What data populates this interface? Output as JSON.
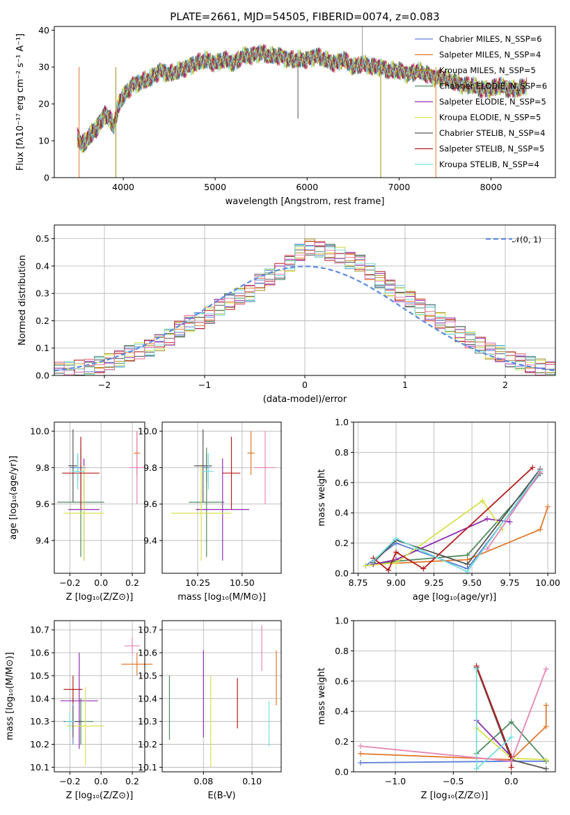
{
  "title": "PLATE=2661, MJD=54505, FIBERID=0074, z=0.083",
  "colors": {
    "Chabrier MILES": "#5b7fd6",
    "Salpeter MILES": "#e0782c",
    "Kroupa MILES": "#a08a20",
    "Chabrier ELODIE": "#4e8a5e",
    "Salpeter ELODIE": "#8e2bb0",
    "Kroupa ELODIE": "#d6e04c",
    "Chabrier STELIB": "#555555",
    "Salpeter STELIB": "#b51c1c",
    "Kroupa STELIB": "#78dede",
    "Pink": "#e684b4",
    "normal": "#5b8ae0"
  },
  "chart_data": [
    {
      "type": "line",
      "xlabel": "wavelength [Angstrom, rest frame]",
      "ylabel": "Flux [fλ10⁻¹⁷ erg cm⁻² s⁻¹ A⁻¹]",
      "xlim": [
        3250,
        8700
      ],
      "ylim": [
        0,
        41
      ],
      "xticks": [
        "4000",
        "5000",
        "6000",
        "7000",
        "8000"
      ],
      "yticks": [
        "0",
        "10",
        "20",
        "30",
        "40"
      ],
      "legend_position": "top-right",
      "legend": [
        "Chabrier MILES, N_SSP=6",
        "Salpeter MILES, N_SSP=4",
        "Kroupa MILES, N_SSP=5",
        "Chabrier ELODIE, N_SSP=6",
        "Salpeter ELODIE, N_SSP=5",
        "Kroupa ELODIE, N_SSP=5",
        "Chabrier STELIB, N_SSP=4",
        "Salpeter STELIB, N_SSP=5",
        "Kroupa STELIB, N_SSP=4"
      ],
      "spectrum_x": [
        3500,
        3550,
        3600,
        3650,
        3700,
        3750,
        3800,
        3850,
        3900,
        3950,
        4000,
        4100,
        4200,
        4300,
        4400,
        4500,
        4600,
        4700,
        4800,
        4900,
        5000,
        5100,
        5200,
        5300,
        5400,
        5500,
        5600,
        5700,
        5800,
        5900,
        6000,
        6100,
        6200,
        6300,
        6400,
        6500,
        6600,
        6700,
        6800,
        6900,
        7000,
        7100,
        7200,
        7300,
        7400,
        7500,
        7600,
        7700,
        7800,
        7900,
        8000,
        8100,
        8200,
        8300,
        8400
      ],
      "spectrum_y": [
        11,
        9,
        10,
        12,
        13,
        15,
        17,
        16,
        14,
        20,
        22,
        25,
        26,
        27,
        29,
        28,
        29,
        30,
        31,
        32,
        31,
        32,
        31,
        33,
        33,
        34,
        33,
        33,
        32,
        32,
        32,
        33,
        32,
        31,
        32,
        30,
        31,
        30,
        30,
        29,
        29,
        28,
        29,
        28,
        27,
        27,
        26,
        25,
        25,
        24,
        24,
        25,
        24,
        24,
        25
      ]
    },
    {
      "type": "bar",
      "xlabel": "(data-model)/error",
      "ylabel": "Normed distribution",
      "xlim": [
        -2.5,
        2.5
      ],
      "ylim": [
        0,
        0.55
      ],
      "xticks": [
        "−2",
        "−1",
        "0",
        "1",
        "2"
      ],
      "yticks": [
        "0.0",
        "0.1",
        "0.2",
        "0.3",
        "0.4",
        "0.5"
      ],
      "legend": [
        "𝒩(0, 1)"
      ],
      "bin_width": 0.1,
      "histogram": [
        0.02,
        0.02,
        0.03,
        0.03,
        0.04,
        0.05,
        0.06,
        0.08,
        0.09,
        0.1,
        0.12,
        0.14,
        0.17,
        0.19,
        0.2,
        0.22,
        0.25,
        0.27,
        0.29,
        0.3,
        0.34,
        0.36,
        0.38,
        0.41,
        0.45,
        0.47,
        0.46,
        0.45,
        0.44,
        0.42,
        0.41,
        0.38,
        0.35,
        0.32,
        0.3,
        0.28,
        0.25,
        0.23,
        0.2,
        0.18,
        0.15,
        0.13,
        0.11,
        0.09,
        0.08,
        0.06,
        0.05,
        0.04,
        0.03,
        0.02
      ]
    },
    {
      "type": "scatter",
      "xlabel": "Z [log₁₀(Z/Z⊙)]",
      "ylabel": "age  [log₁₀(age/yr)]",
      "xlim": [
        -0.3,
        0.28
      ],
      "ylim": [
        9.22,
        10.05
      ],
      "xticks": [
        "−0.2",
        "0.0",
        "0.2"
      ],
      "yticks": [
        "9.4",
        "9.6",
        "9.8",
        "10.0"
      ],
      "points": [
        {
          "series": "Chabrier MILES",
          "x": -0.15,
          "y": 9.8,
          "xerr": 0.05,
          "yerr": 0.08
        },
        {
          "series": "Salpeter MILES",
          "x": 0.23,
          "y": 9.88,
          "xerr": 0.02,
          "yerr": 0.12
        },
        {
          "series": "Chabrier ELODIE",
          "x": -0.13,
          "y": 9.61,
          "xerr": 0.15,
          "yerr": 0.3
        },
        {
          "series": "Salpeter ELODIE",
          "x": -0.11,
          "y": 9.57,
          "xerr": 0.1,
          "yerr": 0.28
        },
        {
          "series": "Kroupa ELODIE",
          "x": -0.11,
          "y": 9.55,
          "xerr": 0.13,
          "yerr": 0.26
        },
        {
          "series": "Chabrier STELIB",
          "x": -0.18,
          "y": 9.81,
          "xerr": 0.03,
          "yerr": 0.2
        },
        {
          "series": "Salpeter STELIB",
          "x": -0.13,
          "y": 9.77,
          "xerr": 0.12,
          "yerr": 0.2
        },
        {
          "series": "Kroupa STELIB",
          "x": -0.15,
          "y": 9.78,
          "xerr": 0.04,
          "yerr": 0.1
        },
        {
          "series": "Pink",
          "x": 0.23,
          "y": 9.8,
          "xerr": 0.05,
          "yerr": 0.2
        }
      ]
    },
    {
      "type": "scatter",
      "xlabel": "mass [log₁₀(M/M⊙)]",
      "ylabel": "",
      "xlim": [
        10.05,
        10.72
      ],
      "ylim": [
        9.22,
        10.05
      ],
      "xticks": [
        "10.25",
        "10.50"
      ],
      "yticks": [
        "9.4",
        "9.6",
        "9.8",
        "10.0"
      ],
      "points": [
        {
          "series": "Chabrier MILES",
          "x": 10.3,
          "y": 9.8,
          "xerr": 0.02,
          "yerr": 0.08
        },
        {
          "series": "Salpeter MILES",
          "x": 10.55,
          "y": 9.88,
          "xerr": 0.02,
          "yerr": 0.12
        },
        {
          "series": "Chabrier ELODIE",
          "x": 10.3,
          "y": 9.61,
          "xerr": 0.1,
          "yerr": 0.3
        },
        {
          "series": "Salpeter ELODIE",
          "x": 10.39,
          "y": 9.57,
          "xerr": 0.15,
          "yerr": 0.28
        },
        {
          "series": "Kroupa ELODIE",
          "x": 10.27,
          "y": 9.55,
          "xerr": 0.17,
          "yerr": 0.26
        },
        {
          "series": "Chabrier STELIB",
          "x": 10.28,
          "y": 9.81,
          "xerr": 0.05,
          "yerr": 0.2
        },
        {
          "series": "Salpeter STELIB",
          "x": 10.44,
          "y": 9.77,
          "xerr": 0.05,
          "yerr": 0.2
        },
        {
          "series": "Kroupa STELIB",
          "x": 10.31,
          "y": 9.78,
          "xerr": 0.03,
          "yerr": 0.1
        },
        {
          "series": "Pink",
          "x": 10.63,
          "y": 9.8,
          "xerr": 0.06,
          "yerr": 0.2
        }
      ]
    },
    {
      "type": "line",
      "xlabel": "age  [log₁₀(age/yr)]",
      "ylabel": "mass weight",
      "xlim": [
        8.72,
        10.05
      ],
      "ylim": [
        0,
        1
      ],
      "xticks": [
        "8.75",
        "9.00",
        "9.25",
        "9.50",
        "9.75",
        "10.00"
      ],
      "yticks": [
        "0.0",
        "0.2",
        "0.4",
        "0.6",
        "0.8",
        "1.0"
      ],
      "series": [
        {
          "name": "Chabrier MILES",
          "x": [
            8.8,
            9.0,
            9.47,
            9.95
          ],
          "y": [
            0.05,
            0.2,
            0.03,
            0.66
          ]
        },
        {
          "name": "Salpeter MILES",
          "x": [
            8.85,
            9.47,
            9.95,
            10.0
          ],
          "y": [
            0.06,
            0.09,
            0.29,
            0.44
          ]
        },
        {
          "name": "Chabrier ELODIE",
          "x": [
            8.8,
            9.0,
            9.47,
            9.95
          ],
          "y": [
            0.05,
            0.08,
            0.12,
            0.66
          ]
        },
        {
          "name": "Salpeter ELODIE",
          "x": [
            8.85,
            9.0,
            9.6,
            9.75
          ],
          "y": [
            0.06,
            0.09,
            0.36,
            0.34
          ]
        },
        {
          "name": "Kroupa ELODIE",
          "x": [
            8.8,
            9.0,
            9.57,
            9.7
          ],
          "y": [
            0.05,
            0.07,
            0.48,
            0.29
          ]
        },
        {
          "name": "Chabrier STELIB",
          "x": [
            8.85,
            9.0,
            9.47,
            9.95
          ],
          "y": [
            0.07,
            0.22,
            0.06,
            0.69
          ]
        },
        {
          "name": "Salpeter STELIB",
          "x": [
            8.85,
            8.95,
            9.0,
            9.18,
            9.9
          ],
          "y": [
            0.1,
            0.02,
            0.14,
            0.03,
            0.7
          ]
        },
        {
          "name": "Kroupa STELIB",
          "x": [
            8.85,
            9.0,
            9.47,
            9.95
          ],
          "y": [
            0.08,
            0.23,
            0.01,
            0.68
          ]
        },
        {
          "name": "Pink",
          "x": [
            9.6,
            9.95
          ],
          "y": [
            0.16,
            0.67
          ]
        }
      ]
    },
    {
      "type": "scatter",
      "xlabel": "Z [log₁₀(Z/Z⊙)]",
      "ylabel": "mass [log₁₀(M/M⊙)]",
      "xlim": [
        -0.3,
        0.28
      ],
      "ylim": [
        10.08,
        10.74
      ],
      "xticks": [
        "−0.2",
        "0.0",
        "0.2"
      ],
      "yticks": [
        "10.1",
        "10.2",
        "10.3",
        "10.4",
        "10.5",
        "10.6",
        "10.7"
      ],
      "points": [
        {
          "series": "Chabrier MILES",
          "x": -0.18,
          "y": 10.3,
          "xerr": 0.04,
          "yerr": 0.1
        },
        {
          "series": "Salpeter MILES",
          "x": 0.23,
          "y": 10.55,
          "xerr": 0.1,
          "yerr": 0.05
        },
        {
          "series": "Chabrier ELODIE",
          "x": -0.13,
          "y": 10.3,
          "xerr": 0.08,
          "yerr": 0.1
        },
        {
          "series": "Salpeter ELODIE",
          "x": -0.14,
          "y": 10.39,
          "xerr": 0.12,
          "yerr": 0.21
        },
        {
          "series": "Kroupa ELODIE",
          "x": -0.1,
          "y": 10.28,
          "xerr": 0.12,
          "yerr": 0.17
        },
        {
          "series": "Chabrier STELIB",
          "x": -0.18,
          "y": 10.3,
          "xerr": 0.06,
          "yerr": 0.07
        },
        {
          "series": "Salpeter STELIB",
          "x": -0.18,
          "y": 10.44,
          "xerr": 0.06,
          "yerr": 0.06
        },
        {
          "series": "Kroupa STELIB",
          "x": -0.2,
          "y": 10.3,
          "xerr": 0.03,
          "yerr": 0.04
        },
        {
          "series": "Pink",
          "x": 0.2,
          "y": 10.63,
          "xerr": 0.05,
          "yerr": 0.04
        }
      ]
    },
    {
      "type": "scatter",
      "xlabel": "E(B-V)",
      "ylabel": "",
      "xlim": [
        0.063,
        0.112
      ],
      "ylim": [
        10.08,
        10.74
      ],
      "xticks": [
        "0.08",
        "0.10"
      ],
      "yticks": [
        "10.1",
        "10.2",
        "10.3",
        "10.4",
        "10.5",
        "10.6",
        "10.7"
      ],
      "points": [
        {
          "series": "Chabrier ELODIE",
          "x": 0.066,
          "y": 10.36,
          "yerr": 0.14
        },
        {
          "series": "Salpeter ELODIE",
          "x": 0.08,
          "y": 10.42,
          "yerr": 0.19
        },
        {
          "series": "Kroupa ELODIE",
          "x": 0.083,
          "y": 10.3,
          "yerr": 0.2
        },
        {
          "series": "Salpeter STELIB",
          "x": 0.094,
          "y": 10.38,
          "yerr": 0.11
        },
        {
          "series": "Pink",
          "x": 0.104,
          "y": 10.62,
          "yerr": 0.1
        },
        {
          "series": "Kroupa STELIB",
          "x": 0.107,
          "y": 10.29,
          "yerr": 0.1
        },
        {
          "series": "Salpeter MILES",
          "x": 0.11,
          "y": 10.49,
          "yerr": 0.12
        }
      ]
    },
    {
      "type": "line",
      "xlabel": "Z [log₁₀(Z/Z⊙)]",
      "ylabel": "mass weight",
      "xlim": [
        -1.36,
        0.38
      ],
      "ylim": [
        0,
        1
      ],
      "xticks": [
        "−1.0",
        "−0.5",
        "0.0"
      ],
      "yticks": [
        "0.0",
        "0.2",
        "0.4",
        "0.6",
        "0.8",
        "1.0"
      ],
      "series": [
        {
          "name": "Chabrier MILES",
          "x": [
            -1.3,
            0.0,
            0.3
          ],
          "y": [
            0.06,
            0.07,
            0.07
          ]
        },
        {
          "name": "Salpeter MILES",
          "x": [
            -1.3,
            0.0,
            0.3,
            0.3
          ],
          "y": [
            0.12,
            0.08,
            0.3,
            0.44
          ]
        },
        {
          "name": "Chabrier ELODIE",
          "x": [
            -0.3,
            0.0,
            0.3
          ],
          "y": [
            0.12,
            0.33,
            0.07
          ]
        },
        {
          "name": "Salpeter ELODIE",
          "x": [
            -0.3,
            0.0
          ],
          "y": [
            0.34,
            0.1
          ]
        },
        {
          "name": "Kroupa ELODIE",
          "x": [
            -0.3,
            0.0,
            0.3
          ],
          "y": [
            0.29,
            0.09,
            0.08
          ]
        },
        {
          "name": "Chabrier STELIB",
          "x": [
            -0.3,
            0.0,
            0.3
          ],
          "y": [
            0.69,
            0.08,
            0.02
          ]
        },
        {
          "name": "Salpeter STELIB",
          "x": [
            -0.3,
            0.0,
            0.0
          ],
          "y": [
            0.7,
            0.1,
            0.03
          ]
        },
        {
          "name": "Kroupa STELIB",
          "x": [
            -0.3,
            -0.3,
            0.0
          ],
          "y": [
            0.68,
            0.02,
            0.23
          ]
        },
        {
          "name": "Pink",
          "x": [
            -1.3,
            0.0,
            0.3
          ],
          "y": [
            0.17,
            0.07,
            0.68
          ]
        }
      ]
    }
  ]
}
